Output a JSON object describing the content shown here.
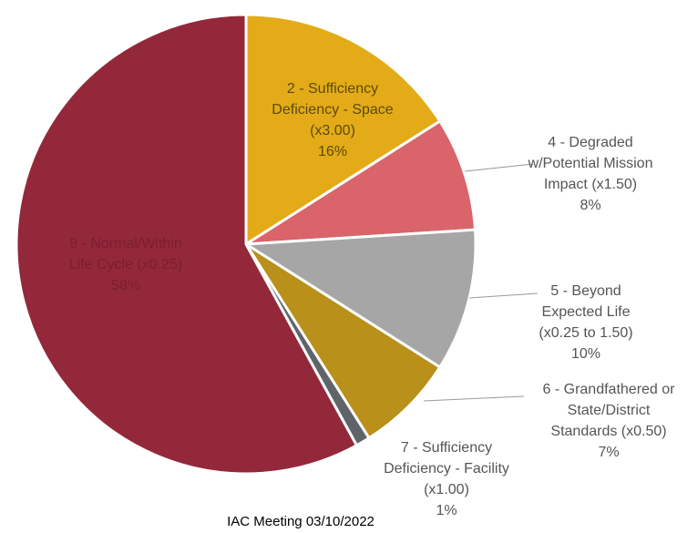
{
  "chart_data": {
    "type": "pie",
    "labels": [
      [
        "2 - Sufficiency",
        "Deficiency - Space",
        "(x3.00)"
      ],
      [
        "4 - Degraded",
        "w/Potential Mission",
        "Impact (x1.50)"
      ],
      [
        "5 - Beyond",
        "Expected Life",
        "(x0.25 to 1.50)"
      ],
      [
        "6 - Grandfathered or",
        "State/District",
        "Standards (x0.50)"
      ],
      [
        "7 - Sufficiency",
        "Deficiency - Facility",
        "(x1.00)"
      ],
      [
        "9 - Normal/Within",
        "Life Cycle (x0.25)"
      ]
    ],
    "values": [
      16,
      8,
      10,
      7,
      1,
      58
    ],
    "value_labels": [
      "16%",
      "8%",
      "10%",
      "7%",
      "1%",
      "58%"
    ],
    "colors": [
      "#e2ab17",
      "#d9646a",
      "#a6a6a6",
      "#b8901a",
      "#5f6468",
      "#93283a"
    ],
    "caption": "IAC Meeting 03/10/2022"
  }
}
